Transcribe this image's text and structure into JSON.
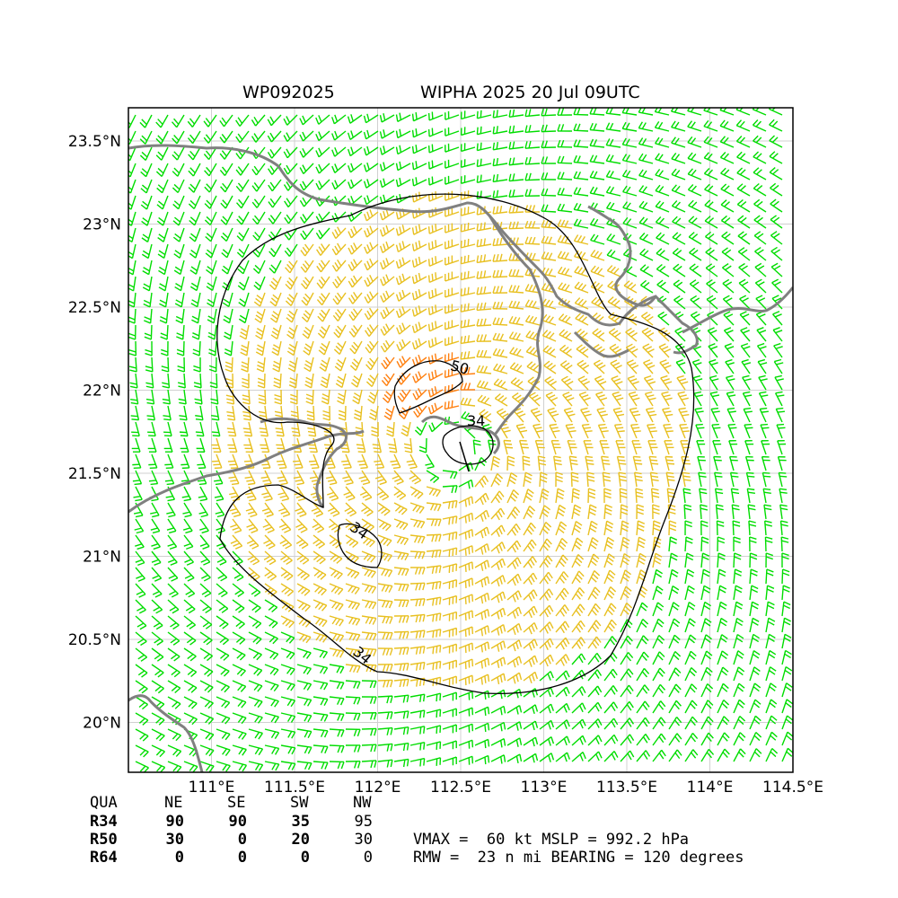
{
  "title": {
    "storm_id": "WP092025",
    "storm_info": "WIPHA 2025 20 Jul 09UTC"
  },
  "axes": {
    "lon_ticks": [
      "111°E",
      "111.5°E",
      "112°E",
      "112.5°E",
      "113°E",
      "113.5°E",
      "114°E",
      "114.5°E"
    ],
    "lat_ticks": [
      "23.5°N",
      "23°N",
      "22.5°N",
      "22°N",
      "21.5°N",
      "21°N",
      "20.5°N",
      "20°N"
    ],
    "lon_range": [
      110.5,
      114.5
    ],
    "lat_range": [
      19.7,
      23.7
    ],
    "grid": true
  },
  "contours": [
    {
      "label": "34",
      "level": 34
    },
    {
      "label": "50",
      "level": 50
    },
    {
      "label": "34",
      "level": 34
    },
    {
      "label": "34",
      "level": 34
    }
  ],
  "colors": {
    "barb_weak": "#00dd00",
    "barb_34": "#e8c020",
    "barb_50": "#ff7f0e",
    "coastline": "#808080",
    "contour": "#000000"
  },
  "radii_table": {
    "header": [
      "QUA",
      "NE",
      "SE",
      "SW",
      "NW"
    ],
    "rows": [
      {
        "label": "R34",
        "values": [
          "90",
          "90",
          "35",
          "95"
        ]
      },
      {
        "label": "R50",
        "values": [
          "30",
          "0",
          "20",
          "30"
        ]
      },
      {
        "label": "R64",
        "values": [
          "0",
          "0",
          "0",
          "0"
        ]
      }
    ]
  },
  "stats": {
    "line1": "VMAX =  60 kt MSLP = 992.2 hPa",
    "line2": "RMW =  23 n mi BEARING = 120 degrees"
  }
}
